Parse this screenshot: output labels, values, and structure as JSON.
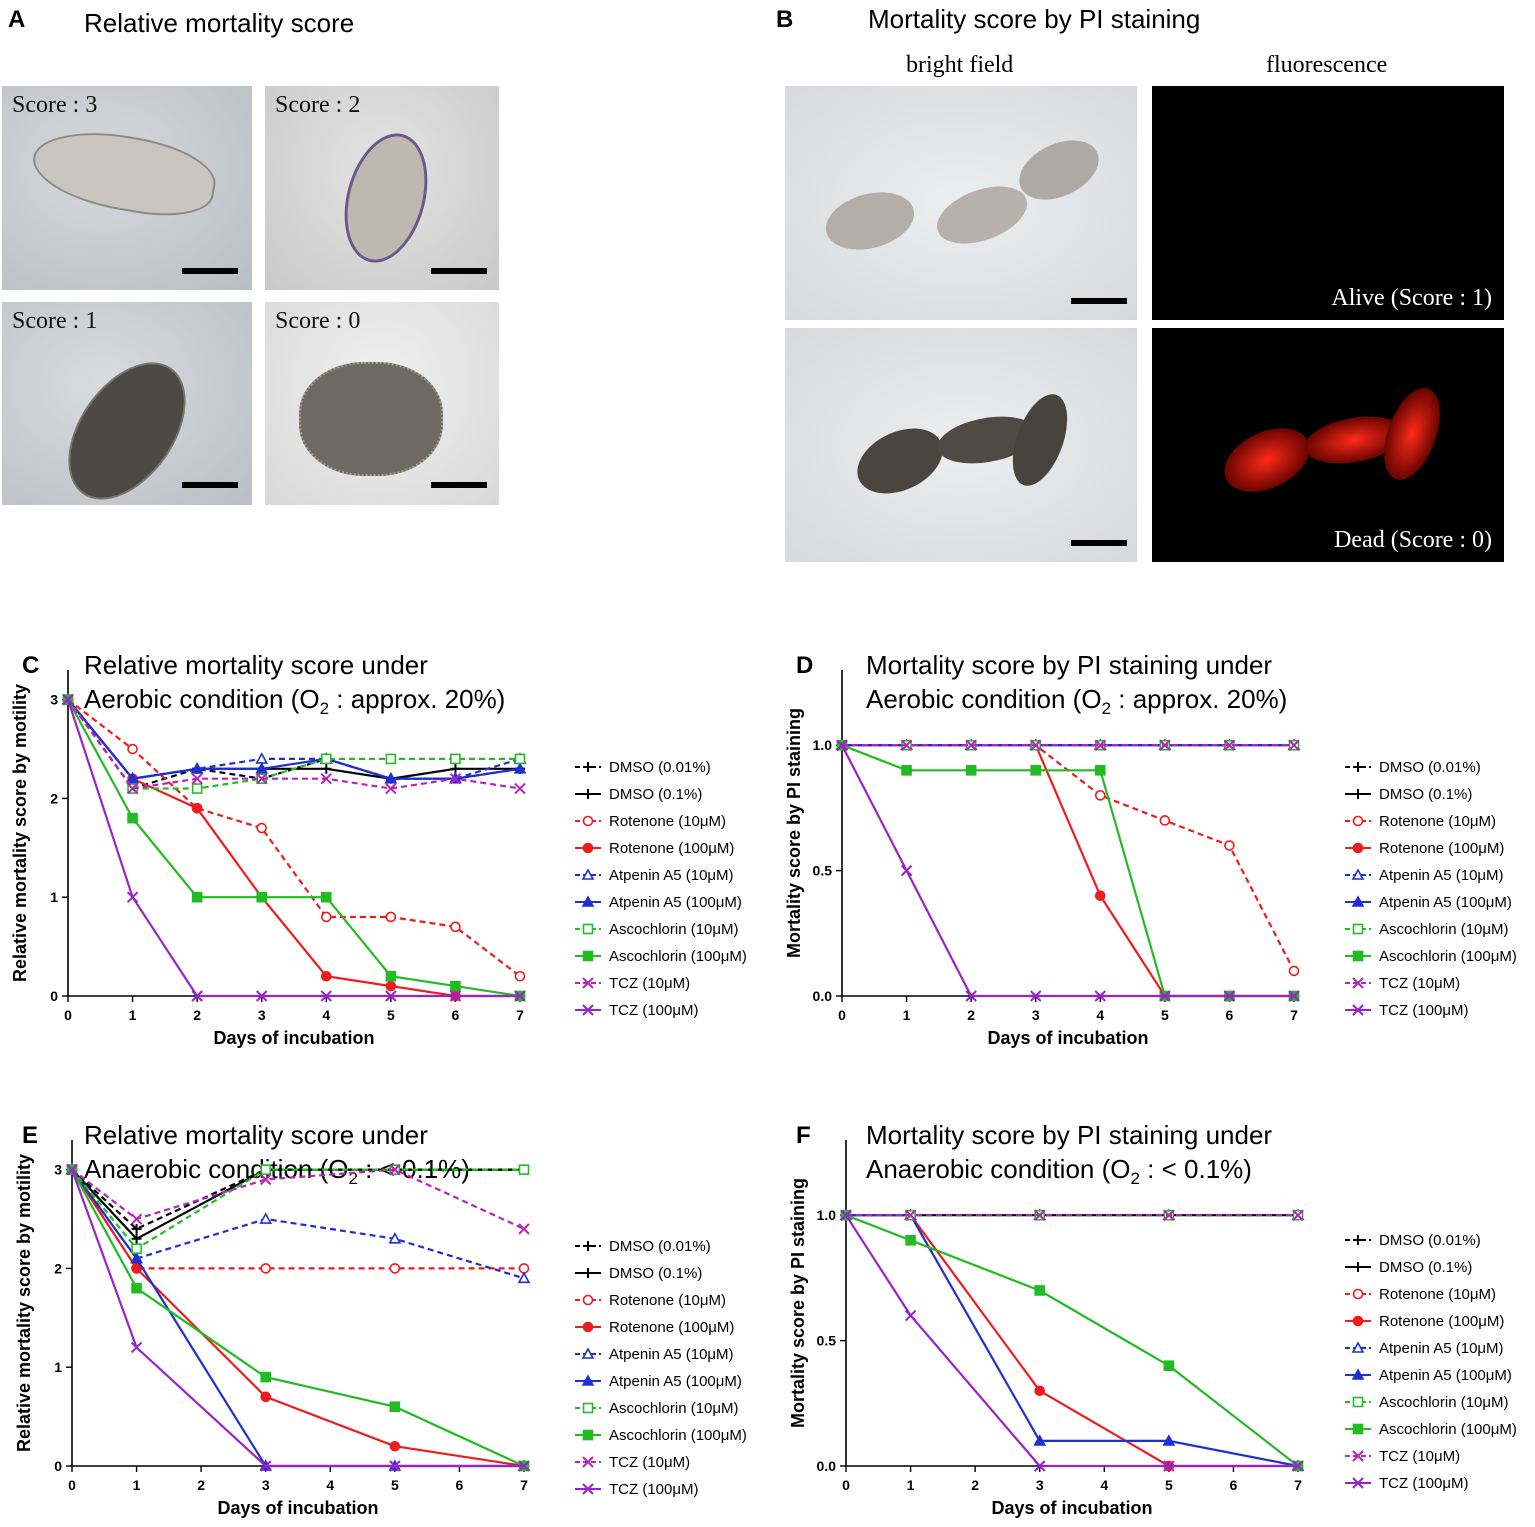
{
  "panelA": {
    "letter": "A",
    "title": "Relative mortality score",
    "images": [
      {
        "label": "Score : 3"
      },
      {
        "label": "Score : 2"
      },
      {
        "label": "Score : 1"
      },
      {
        "label": "Score : 0"
      }
    ]
  },
  "panelB": {
    "letter": "B",
    "title": "Mortality score by PI staining",
    "col_bright": "bright field",
    "col_fluor": "fluorescence",
    "alive_label": "Alive (Score : 1)",
    "dead_label": "Dead (Score : 0)"
  },
  "legend": [
    {
      "label": "DMSO (0.01%)",
      "color": "#000000",
      "dash": true,
      "marker": "plus"
    },
    {
      "label": "DMSO (0.1%)",
      "color": "#000000",
      "dash": false,
      "marker": "plus"
    },
    {
      "label": "Rotenone (10μM)",
      "color": "#ee1c1c",
      "dash": true,
      "marker": "circle-open"
    },
    {
      "label": "Rotenone (100μM)",
      "color": "#ee1c1c",
      "dash": false,
      "marker": "circle"
    },
    {
      "label": "Atpenin A5 (10μM)",
      "color": "#1f2fd6",
      "dash": true,
      "marker": "triangle-open"
    },
    {
      "label": "Atpenin A5 (100μM)",
      "color": "#1f2fd6",
      "dash": false,
      "marker": "triangle"
    },
    {
      "label": "Ascochlorin (10μM)",
      "color": "#22bb22",
      "dash": true,
      "marker": "square-open"
    },
    {
      "label": "Ascochlorin (100μM)",
      "color": "#22bb22",
      "dash": false,
      "marker": "square"
    },
    {
      "label": "TCZ (10μM)",
      "color": "#bb22bb",
      "dash": true,
      "marker": "x"
    },
    {
      "label": "TCZ (100μM)",
      "color": "#9922cc",
      "dash": false,
      "marker": "x"
    }
  ],
  "chart_data": [
    {
      "panel": "C",
      "type": "line",
      "title_line1": "Relative mortality score under",
      "title_line2": "Aerobic condition (O",
      "title_sub": "2",
      "title_tail": " : approx. 20%)",
      "xlabel": "Days of incubation",
      "ylabel": "Relative mortality score by motility",
      "xlim": [
        0,
        7
      ],
      "ylim": [
        0,
        3.3
      ],
      "xticks": [
        "0",
        "1",
        "2",
        "3",
        "4",
        "5",
        "6",
        "7"
      ],
      "yticks": [
        "0",
        "1",
        "2",
        "3"
      ],
      "x": [
        0,
        1,
        2,
        3,
        4,
        5,
        6,
        7
      ],
      "series": [
        {
          "name": "DMSO (0.01%)",
          "values": [
            3,
            2.1,
            2.3,
            2.2,
            2.4,
            2.2,
            2.2,
            2.3
          ]
        },
        {
          "name": "DMSO (0.1%)",
          "values": [
            3,
            2.2,
            2.3,
            2.3,
            2.3,
            2.2,
            2.3,
            2.3
          ]
        },
        {
          "name": "Rotenone (10μM)",
          "values": [
            3,
            2.5,
            1.9,
            1.7,
            0.8,
            0.8,
            0.7,
            0.2
          ]
        },
        {
          "name": "Rotenone (100μM)",
          "values": [
            3,
            2.2,
            1.9,
            1.0,
            0.2,
            0.1,
            0,
            0
          ]
        },
        {
          "name": "Atpenin A5 (10μM)",
          "values": [
            3,
            2.2,
            2.3,
            2.4,
            2.4,
            2.2,
            2.2,
            2.4
          ]
        },
        {
          "name": "Atpenin A5 (100μM)",
          "values": [
            3,
            2.2,
            2.3,
            2.3,
            2.4,
            2.2,
            2.2,
            2.3
          ]
        },
        {
          "name": "Ascochlorin (10μM)",
          "values": [
            3,
            2.1,
            2.1,
            2.2,
            2.4,
            2.4,
            2.4,
            2.4
          ]
        },
        {
          "name": "Ascochlorin (100μM)",
          "values": [
            3,
            1.8,
            1.0,
            1.0,
            1.0,
            0.2,
            0.1,
            0
          ]
        },
        {
          "name": "TCZ (10μM)",
          "values": [
            3,
            2.1,
            2.2,
            2.2,
            2.2,
            2.1,
            2.2,
            2.1
          ]
        },
        {
          "name": "TCZ (100μM)",
          "values": [
            3,
            1.0,
            0,
            0,
            0,
            0,
            0,
            0
          ]
        }
      ]
    },
    {
      "panel": "D",
      "type": "line",
      "title_line1": "Mortality score by PI staining under",
      "title_line2": "Aerobic condition (O",
      "title_sub": "2",
      "title_tail": " : approx. 20%)",
      "xlabel": "Days of incubation",
      "ylabel": "Mortality score by PI staining",
      "xlim": [
        0,
        7
      ],
      "ylim": [
        0,
        1.3
      ],
      "xticks": [
        "0",
        "1",
        "2",
        "3",
        "4",
        "5",
        "6",
        "7"
      ],
      "yticks": [
        "0.0",
        "0.5",
        "1.0"
      ],
      "x": [
        0,
        1,
        2,
        3,
        4,
        5,
        6,
        7
      ],
      "series": [
        {
          "name": "DMSO (0.01%)",
          "values": [
            1,
            1,
            1,
            1,
            1,
            1,
            1,
            1
          ]
        },
        {
          "name": "DMSO (0.1%)",
          "values": [
            1,
            1,
            1,
            1,
            1,
            1,
            1,
            1
          ]
        },
        {
          "name": "Rotenone (10μM)",
          "values": [
            1,
            1,
            1,
            1,
            0.8,
            0.7,
            0.6,
            0.1
          ]
        },
        {
          "name": "Rotenone (100μM)",
          "values": [
            1,
            1,
            1,
            1,
            0.4,
            0,
            0,
            0
          ]
        },
        {
          "name": "Atpenin A5 (10μM)",
          "values": [
            1,
            1,
            1,
            1,
            1,
            1,
            1,
            1
          ]
        },
        {
          "name": "Atpenin A5 (100μM)",
          "values": [
            1,
            1,
            1,
            1,
            1,
            1,
            1,
            1
          ]
        },
        {
          "name": "Ascochlorin (10μM)",
          "values": [
            1,
            1,
            1,
            1,
            1,
            1,
            1,
            1
          ]
        },
        {
          "name": "Ascochlorin (100μM)",
          "values": [
            1,
            0.9,
            0.9,
            0.9,
            0.9,
            0,
            0,
            0
          ]
        },
        {
          "name": "TCZ (10μM)",
          "values": [
            1,
            1,
            1,
            1,
            1,
            1,
            1,
            1
          ]
        },
        {
          "name": "TCZ (100μM)",
          "values": [
            1,
            0.5,
            0,
            0,
            0,
            0,
            0,
            0
          ]
        }
      ]
    },
    {
      "panel": "E",
      "type": "line",
      "title_line1": "Relative mortality score under",
      "title_line2": "Anaerobic condition (O",
      "title_sub": "2",
      "title_tail": " : < 0.1%)",
      "xlabel": "Days of incubation",
      "ylabel": "Relative mortality score by motility",
      "xlim": [
        0,
        7
      ],
      "ylim": [
        0,
        3.3
      ],
      "xticks": [
        "0",
        "1",
        "2",
        "3",
        "4",
        "5",
        "6",
        "7"
      ],
      "yticks": [
        "0",
        "1",
        "2",
        "3"
      ],
      "x": [
        0,
        1,
        3,
        5,
        7
      ],
      "series": [
        {
          "name": "DMSO (0.01%)",
          "values": [
            3,
            2.4,
            3,
            3,
            3
          ]
        },
        {
          "name": "DMSO (0.1%)",
          "values": [
            3,
            2.3,
            3,
            3,
            3
          ]
        },
        {
          "name": "Rotenone (10μM)",
          "values": [
            3,
            2.0,
            2.0,
            2.0,
            2.0
          ]
        },
        {
          "name": "Rotenone (100μM)",
          "values": [
            3,
            2.0,
            0.7,
            0.2,
            0
          ]
        },
        {
          "name": "Atpenin A5 (10μM)",
          "values": [
            3,
            2.1,
            2.5,
            2.3,
            1.9
          ]
        },
        {
          "name": "Atpenin A5 (100μM)",
          "values": [
            3,
            2.1,
            0,
            0,
            0
          ]
        },
        {
          "name": "Ascochlorin (10μM)",
          "values": [
            3,
            2.2,
            3,
            3,
            3
          ]
        },
        {
          "name": "Ascochlorin (100μM)",
          "values": [
            3,
            1.8,
            0.9,
            0.6,
            0
          ]
        },
        {
          "name": "TCZ (10μM)",
          "values": [
            3,
            2.5,
            2.9,
            3,
            2.4
          ]
        },
        {
          "name": "TCZ (100μM)",
          "values": [
            3,
            1.2,
            0,
            0,
            0
          ]
        }
      ]
    },
    {
      "panel": "F",
      "type": "line",
      "title_line1": "Mortality score by PI staining under",
      "title_line2": "Anaerobic condition (O",
      "title_sub": "2",
      "title_tail": " : < 0.1%)",
      "xlabel": "Days of incubation",
      "ylabel": "Mortality score by PI staining",
      "xlim": [
        0,
        7
      ],
      "ylim": [
        0,
        1.3
      ],
      "xticks": [
        "0",
        "1",
        "2",
        "3",
        "4",
        "5",
        "6",
        "7"
      ],
      "yticks": [
        "0.0",
        "0.5",
        "1.0"
      ],
      "x": [
        0,
        1,
        3,
        5,
        7
      ],
      "series": [
        {
          "name": "DMSO (0.01%)",
          "values": [
            1,
            1,
            1,
            1,
            1
          ]
        },
        {
          "name": "DMSO (0.1%)",
          "values": [
            1,
            1,
            1,
            1,
            1
          ]
        },
        {
          "name": "Rotenone (10μM)",
          "values": [
            1,
            1,
            1,
            1,
            1
          ]
        },
        {
          "name": "Rotenone (100μM)",
          "values": [
            1,
            1,
            0.3,
            0,
            0
          ]
        },
        {
          "name": "Atpenin A5 (10μM)",
          "values": [
            1,
            1,
            1,
            1,
            1
          ]
        },
        {
          "name": "Atpenin A5 (100μM)",
          "values": [
            1,
            1,
            0.1,
            0.1,
            0
          ]
        },
        {
          "name": "Ascochlorin (10μM)",
          "values": [
            1,
            1,
            1,
            1,
            1
          ]
        },
        {
          "name": "Ascochlorin (100μM)",
          "values": [
            1,
            0.9,
            0.7,
            0.4,
            0
          ]
        },
        {
          "name": "TCZ (10μM)",
          "values": [
            1,
            1,
            1,
            1,
            1
          ]
        },
        {
          "name": "TCZ (100μM)",
          "values": [
            1,
            0.6,
            0,
            0,
            0
          ]
        }
      ]
    }
  ]
}
